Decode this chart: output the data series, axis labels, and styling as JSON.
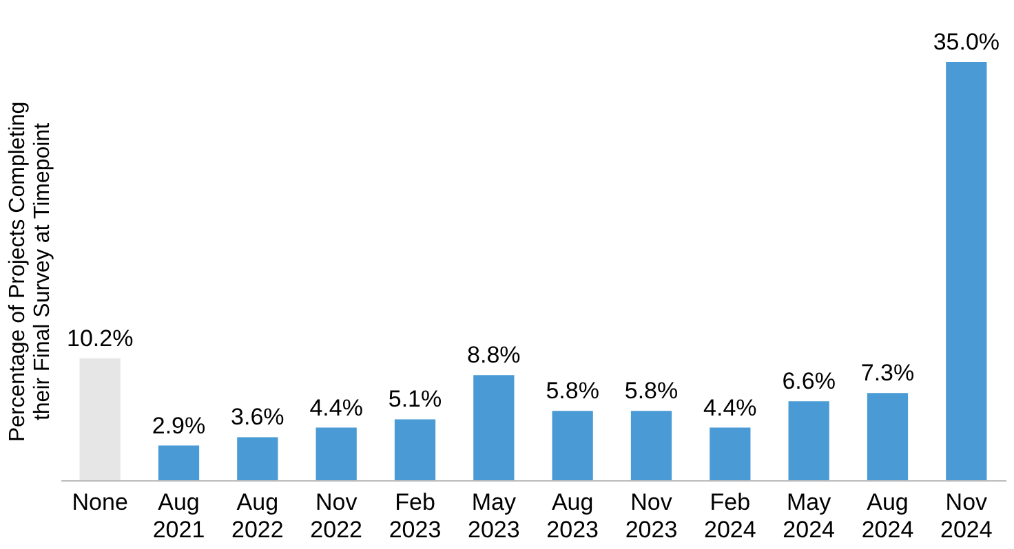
{
  "chart_data": {
    "type": "bar",
    "ylabel": "Percentage of Projects Completing their Final Survey at Timepoint",
    "categories": [
      "None",
      "Aug 2021",
      "Aug 2022",
      "Nov 2022",
      "Feb 2023",
      "May 2023",
      "Aug 2023",
      "Nov 2023",
      "Feb 2024",
      "May 2024",
      "Aug 2024",
      "Nov 2024"
    ],
    "values": [
      10.2,
      2.9,
      3.6,
      4.4,
      5.1,
      8.8,
      5.8,
      5.8,
      4.4,
      6.6,
      7.3,
      35.0
    ],
    "colors": [
      "#e6e6e6",
      "#4a9bd5",
      "#4a9bd5",
      "#4a9bd5",
      "#4a9bd5",
      "#4a9bd5",
      "#4a9bd5",
      "#4a9bd5",
      "#4a9bd5",
      "#4a9bd5",
      "#4a9bd5",
      "#4a9bd5"
    ],
    "value_labels": [
      "10.2%",
      "2.9%",
      "3.6%",
      "4.4%",
      "5.1%",
      "8.8%",
      "5.8%",
      "5.8%",
      "4.4%",
      "6.6%",
      "7.3%",
      "35.0%"
    ],
    "grid": false
  }
}
